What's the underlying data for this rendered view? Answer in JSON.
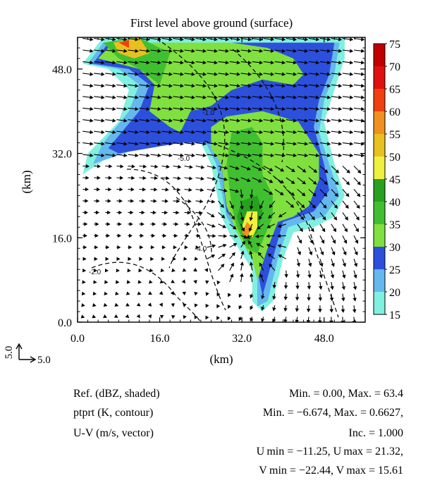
{
  "chart_data": {
    "type": "heatmap",
    "title": "First level above ground (surface)",
    "xlabel": "(km)",
    "ylabel": "(km)",
    "x_ticks": [
      "0.0",
      "16.0",
      "32.0",
      "48.0"
    ],
    "x_tick_values": [
      0,
      16,
      32,
      48
    ],
    "y_ticks": [
      "0.0",
      "16.0",
      "32.0",
      "48.0"
    ],
    "y_tick_values": [
      0,
      16,
      32,
      48
    ],
    "xlim": [
      0,
      56
    ],
    "ylim": [
      0,
      54
    ],
    "colorbar": {
      "labels": [
        "75",
        "70",
        "65",
        "60",
        "55",
        "50",
        "45",
        "40",
        "35",
        "30",
        "25",
        "20",
        "15"
      ],
      "levels": [
        15,
        20,
        25,
        30,
        35,
        40,
        45,
        50,
        55,
        60,
        65,
        70,
        75
      ],
      "colors": [
        "#80f0e0",
        "#64b8ee",
        "#2c50dc",
        "#80e040",
        "#40c030",
        "#28a020",
        "#f0f040",
        "#e8c020",
        "#f09020",
        "#f04010",
        "#e01010",
        "#c00000"
      ]
    },
    "vector_scale_labels": [
      "5.0",
      "5.0"
    ],
    "contour_labels": [
      "-2.0",
      "-1.0",
      "-4.0",
      "-5.0"
    ],
    "reflectivity_regions": [
      {
        "level": 15,
        "points": [
          [
            1,
            49
          ],
          [
            5,
            54
          ],
          [
            52,
            54
          ],
          [
            52,
            50
          ],
          [
            50,
            44
          ],
          [
            48,
            38
          ],
          [
            50,
            30
          ],
          [
            52,
            24
          ],
          [
            50,
            20
          ],
          [
            46,
            18
          ],
          [
            42,
            17
          ],
          [
            40,
            12
          ],
          [
            38,
            4
          ],
          [
            36,
            2
          ],
          [
            34,
            4
          ],
          [
            34,
            10
          ],
          [
            30,
            16
          ],
          [
            28,
            20
          ],
          [
            26,
            30
          ],
          [
            24,
            34
          ],
          [
            18,
            36
          ],
          [
            10,
            34
          ],
          [
            4,
            30
          ],
          [
            1,
            28
          ],
          [
            2,
            32
          ],
          [
            8,
            38
          ],
          [
            10,
            44
          ],
          [
            6,
            48
          ]
        ]
      },
      {
        "level": 20,
        "points": [
          [
            2,
            49
          ],
          [
            5,
            53
          ],
          [
            51,
            53
          ],
          [
            50,
            47
          ],
          [
            48,
            42
          ],
          [
            47,
            36
          ],
          [
            49,
            30
          ],
          [
            51,
            24
          ],
          [
            48,
            20
          ],
          [
            44,
            19
          ],
          [
            41,
            18
          ],
          [
            39,
            12
          ],
          [
            37,
            4
          ],
          [
            35,
            3
          ],
          [
            35,
            10
          ],
          [
            31,
            17
          ],
          [
            29,
            20
          ],
          [
            27,
            30
          ],
          [
            25,
            34
          ],
          [
            18,
            35
          ],
          [
            12,
            33
          ],
          [
            6,
            31
          ],
          [
            3,
            30
          ],
          [
            5,
            34
          ],
          [
            10,
            40
          ],
          [
            12,
            45
          ],
          [
            8,
            48
          ]
        ]
      },
      {
        "level": 25,
        "points": [
          [
            3,
            49
          ],
          [
            6,
            53
          ],
          [
            50,
            53
          ],
          [
            49,
            47
          ],
          [
            47,
            42
          ],
          [
            46,
            37
          ],
          [
            48,
            30
          ],
          [
            49,
            25
          ],
          [
            46,
            21
          ],
          [
            43,
            20
          ],
          [
            40,
            19
          ],
          [
            38,
            12
          ],
          [
            36,
            5
          ],
          [
            35,
            10
          ],
          [
            32,
            17
          ],
          [
            29,
            21
          ],
          [
            28,
            30
          ],
          [
            26,
            34
          ],
          [
            20,
            34
          ],
          [
            14,
            33
          ],
          [
            8,
            32
          ],
          [
            6,
            33
          ],
          [
            12,
            40
          ],
          [
            14,
            45
          ],
          [
            10,
            48
          ]
        ]
      },
      {
        "level": 30,
        "points": [
          [
            4,
            50
          ],
          [
            7,
            53
          ],
          [
            30,
            53
          ],
          [
            37,
            52
          ],
          [
            42,
            50
          ],
          [
            44,
            47
          ],
          [
            42,
            45
          ],
          [
            36,
            46
          ],
          [
            30,
            44
          ],
          [
            26,
            41
          ],
          [
            22,
            40
          ],
          [
            20,
            36
          ],
          [
            18,
            37
          ],
          [
            14,
            40
          ],
          [
            15,
            45
          ],
          [
            12,
            48
          ]
        ]
      },
      {
        "level": 30,
        "points": [
          [
            26,
            37
          ],
          [
            29,
            39
          ],
          [
            36,
            40
          ],
          [
            43,
            38
          ],
          [
            47,
            32
          ],
          [
            47,
            27
          ],
          [
            45,
            22
          ],
          [
            42,
            20
          ],
          [
            39,
            19
          ],
          [
            37,
            14
          ],
          [
            35,
            8
          ],
          [
            34,
            12
          ],
          [
            31,
            17
          ],
          [
            29,
            22
          ],
          [
            28,
            30
          ],
          [
            26,
            33
          ]
        ]
      },
      {
        "level": 35,
        "points": [
          [
            5,
            53
          ],
          [
            12,
            54
          ],
          [
            18,
            51
          ],
          [
            16,
            45
          ],
          [
            12,
            48
          ],
          [
            8,
            50
          ]
        ]
      },
      {
        "level": 35,
        "points": [
          [
            29,
            30
          ],
          [
            30,
            36
          ],
          [
            34,
            37
          ],
          [
            36,
            34
          ],
          [
            36,
            28
          ],
          [
            38,
            24
          ],
          [
            38,
            20
          ],
          [
            35,
            13
          ],
          [
            33,
            14
          ],
          [
            31,
            18
          ],
          [
            30,
            22
          ]
        ]
      },
      {
        "level": 40,
        "points": [
          [
            31,
            20
          ],
          [
            32,
            23
          ],
          [
            35,
            24
          ],
          [
            36,
            21
          ],
          [
            35,
            17
          ],
          [
            33,
            15
          ],
          [
            32,
            17
          ]
        ]
      },
      {
        "level": 45,
        "points": [
          [
            32,
            18
          ],
          [
            33,
            21
          ],
          [
            35,
            21
          ],
          [
            35,
            18
          ],
          [
            34,
            16
          ]
        ]
      },
      {
        "level": 50,
        "points": [
          [
            7,
            53
          ],
          [
            12,
            54
          ],
          [
            14,
            51
          ],
          [
            11,
            50
          ],
          [
            8,
            51
          ]
        ]
      },
      {
        "level": 55,
        "points": [
          [
            32,
            17
          ],
          [
            33,
            19
          ],
          [
            34,
            18
          ],
          [
            33,
            16
          ]
        ]
      },
      {
        "level": 60,
        "points": [
          [
            8,
            53
          ],
          [
            10,
            53.5
          ],
          [
            10,
            52
          ]
        ]
      }
    ]
  },
  "stats": {
    "rows": [
      {
        "label": "Ref. (dBZ, shaded)",
        "value": "Min. = 0.00, Max. = 63.4"
      },
      {
        "label": "ptprt (K, contour)",
        "value": "Min. = −6.674, Max. = 0.6627,"
      },
      {
        "label": "U-V (m/s, vector)",
        "value": "Inc. = 1.000"
      }
    ],
    "u_range": "U min = −11.25, U max = 21.32,",
    "v_range": "V min = −22.44, V max = 15.61"
  }
}
